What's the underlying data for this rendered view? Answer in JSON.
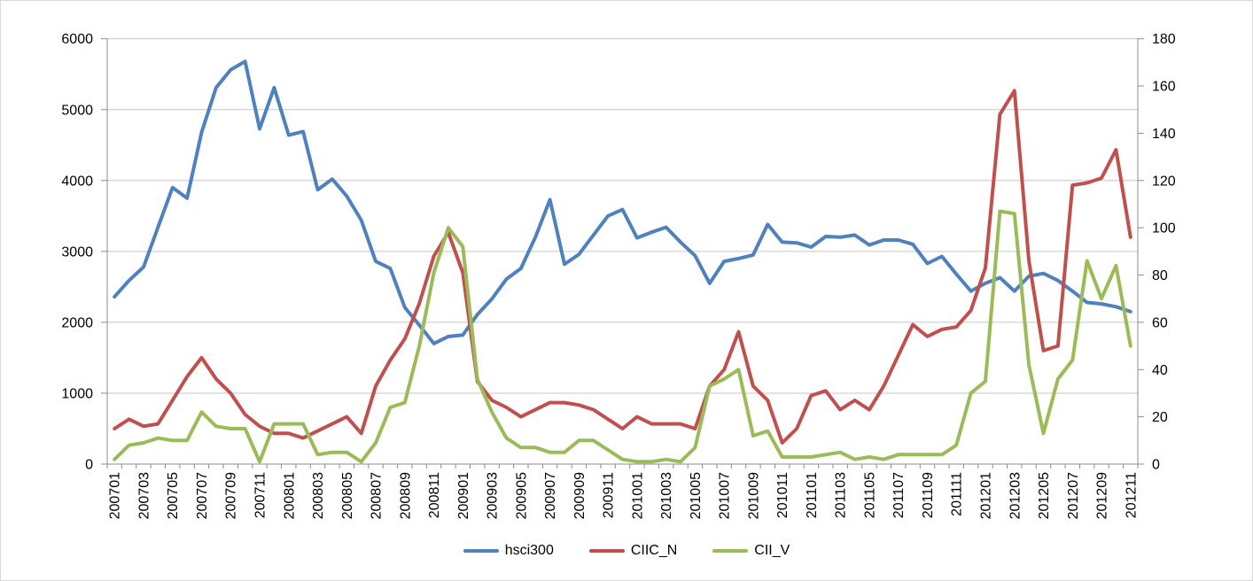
{
  "chart_data": {
    "type": "line",
    "title": "",
    "xlabel": "",
    "ylabel": "",
    "grid": "horizontal",
    "background": "#FFFFFF",
    "gridline_color": "#C6C6C6",
    "axis_line_color": "#8C8C8C",
    "text_color": "#000000",
    "x_tick_label_every": 2,
    "x": [
      "200701",
      "200702",
      "200703",
      "200704",
      "200705",
      "200706",
      "200707",
      "200708",
      "200709",
      "200710",
      "200711",
      "200712",
      "200801",
      "200802",
      "200803",
      "200804",
      "200805",
      "200806",
      "200807",
      "200808",
      "200809",
      "200810",
      "200811",
      "200812",
      "200901",
      "200902",
      "200903",
      "200904",
      "200905",
      "200906",
      "200907",
      "200908",
      "200909",
      "200910",
      "200911",
      "200912",
      "201001",
      "201002",
      "201003",
      "201004",
      "201005",
      "201006",
      "201007",
      "201008",
      "201009",
      "201010",
      "201011",
      "201012",
      "201101",
      "201102",
      "201103",
      "201104",
      "201105",
      "201106",
      "201107",
      "201108",
      "201109",
      "201110",
      "201111",
      "201112",
      "201201",
      "201202",
      "201203",
      "201204",
      "201205",
      "201206",
      "201207",
      "201208",
      "201209",
      "201210",
      "201211"
    ],
    "left_axis": {
      "min": 0,
      "max": 6000,
      "step": 1000,
      "labels": [
        "0",
        "1000",
        "2000",
        "3000",
        "4000",
        "5000",
        "6000"
      ]
    },
    "right_axis": {
      "min": 0,
      "max": 180,
      "step": 20,
      "labels": [
        "0",
        "20",
        "40",
        "60",
        "80",
        "100",
        "120",
        "140",
        "160",
        "180"
      ]
    },
    "legend": {
      "position": "bottom",
      "entries": [
        "hsci300",
        "CIIC_N",
        "CII_V"
      ]
    },
    "series": [
      {
        "name": "hsci300",
        "color": "#4F81BD",
        "axis": "left",
        "values": [
          2360,
          2590,
          2780,
          3340,
          3900,
          3750,
          4680,
          5310,
          5560,
          5680,
          4730,
          5310,
          4640,
          4690,
          3870,
          4020,
          3780,
          3440,
          2860,
          2760,
          2210,
          1960,
          1700,
          1800,
          1820,
          2110,
          2330,
          2610,
          2760,
          3200,
          3730,
          2820,
          2960,
          3230,
          3500,
          3590,
          3190,
          3270,
          3340,
          3130,
          2940,
          2550,
          2860,
          2900,
          2950,
          3380,
          3130,
          3120,
          3060,
          3210,
          3200,
          3230,
          3090,
          3160,
          3160,
          3100,
          2830,
          2930,
          2680,
          2440,
          2550,
          2630,
          2440,
          2650,
          2690,
          2590,
          2440,
          2280,
          2260,
          2220,
          2150
        ]
      },
      {
        "name": "CIIC_N",
        "color": "#C0504D",
        "axis": "right",
        "values": [
          15,
          19,
          16,
          17,
          27,
          37,
          45,
          36,
          30,
          21,
          16,
          13,
          13,
          11,
          14,
          17,
          20,
          13,
          33,
          44,
          53,
          68,
          88,
          98,
          81,
          35,
          27,
          24,
          20,
          23,
          26,
          26,
          25,
          23,
          19,
          15,
          20,
          17,
          17,
          17,
          15,
          33,
          40,
          56,
          33,
          27,
          9,
          15,
          29,
          31,
          23,
          27,
          23,
          33,
          46,
          59,
          54,
          57,
          58,
          65,
          83,
          148,
          158,
          86,
          48,
          50,
          118,
          119,
          121,
          133,
          96
        ]
      },
      {
        "name": "CII_V",
        "color": "#9BBB59",
        "axis": "right",
        "values": [
          2,
          8,
          9,
          11,
          10,
          10,
          22,
          16,
          15,
          15,
          1,
          17,
          17,
          17,
          4,
          5,
          5,
          1,
          9,
          24,
          26,
          50,
          81,
          100,
          92,
          36,
          22,
          11,
          7,
          7,
          5,
          5,
          10,
          10,
          6,
          2,
          1,
          1,
          2,
          1,
          7,
          33,
          36,
          40,
          12,
          14,
          3,
          3,
          3,
          4,
          5,
          2,
          3,
          2,
          4,
          4,
          4,
          4,
          8,
          30,
          35,
          107,
          106,
          42,
          13,
          36,
          44,
          86,
          70,
          84,
          50
        ]
      }
    ]
  }
}
